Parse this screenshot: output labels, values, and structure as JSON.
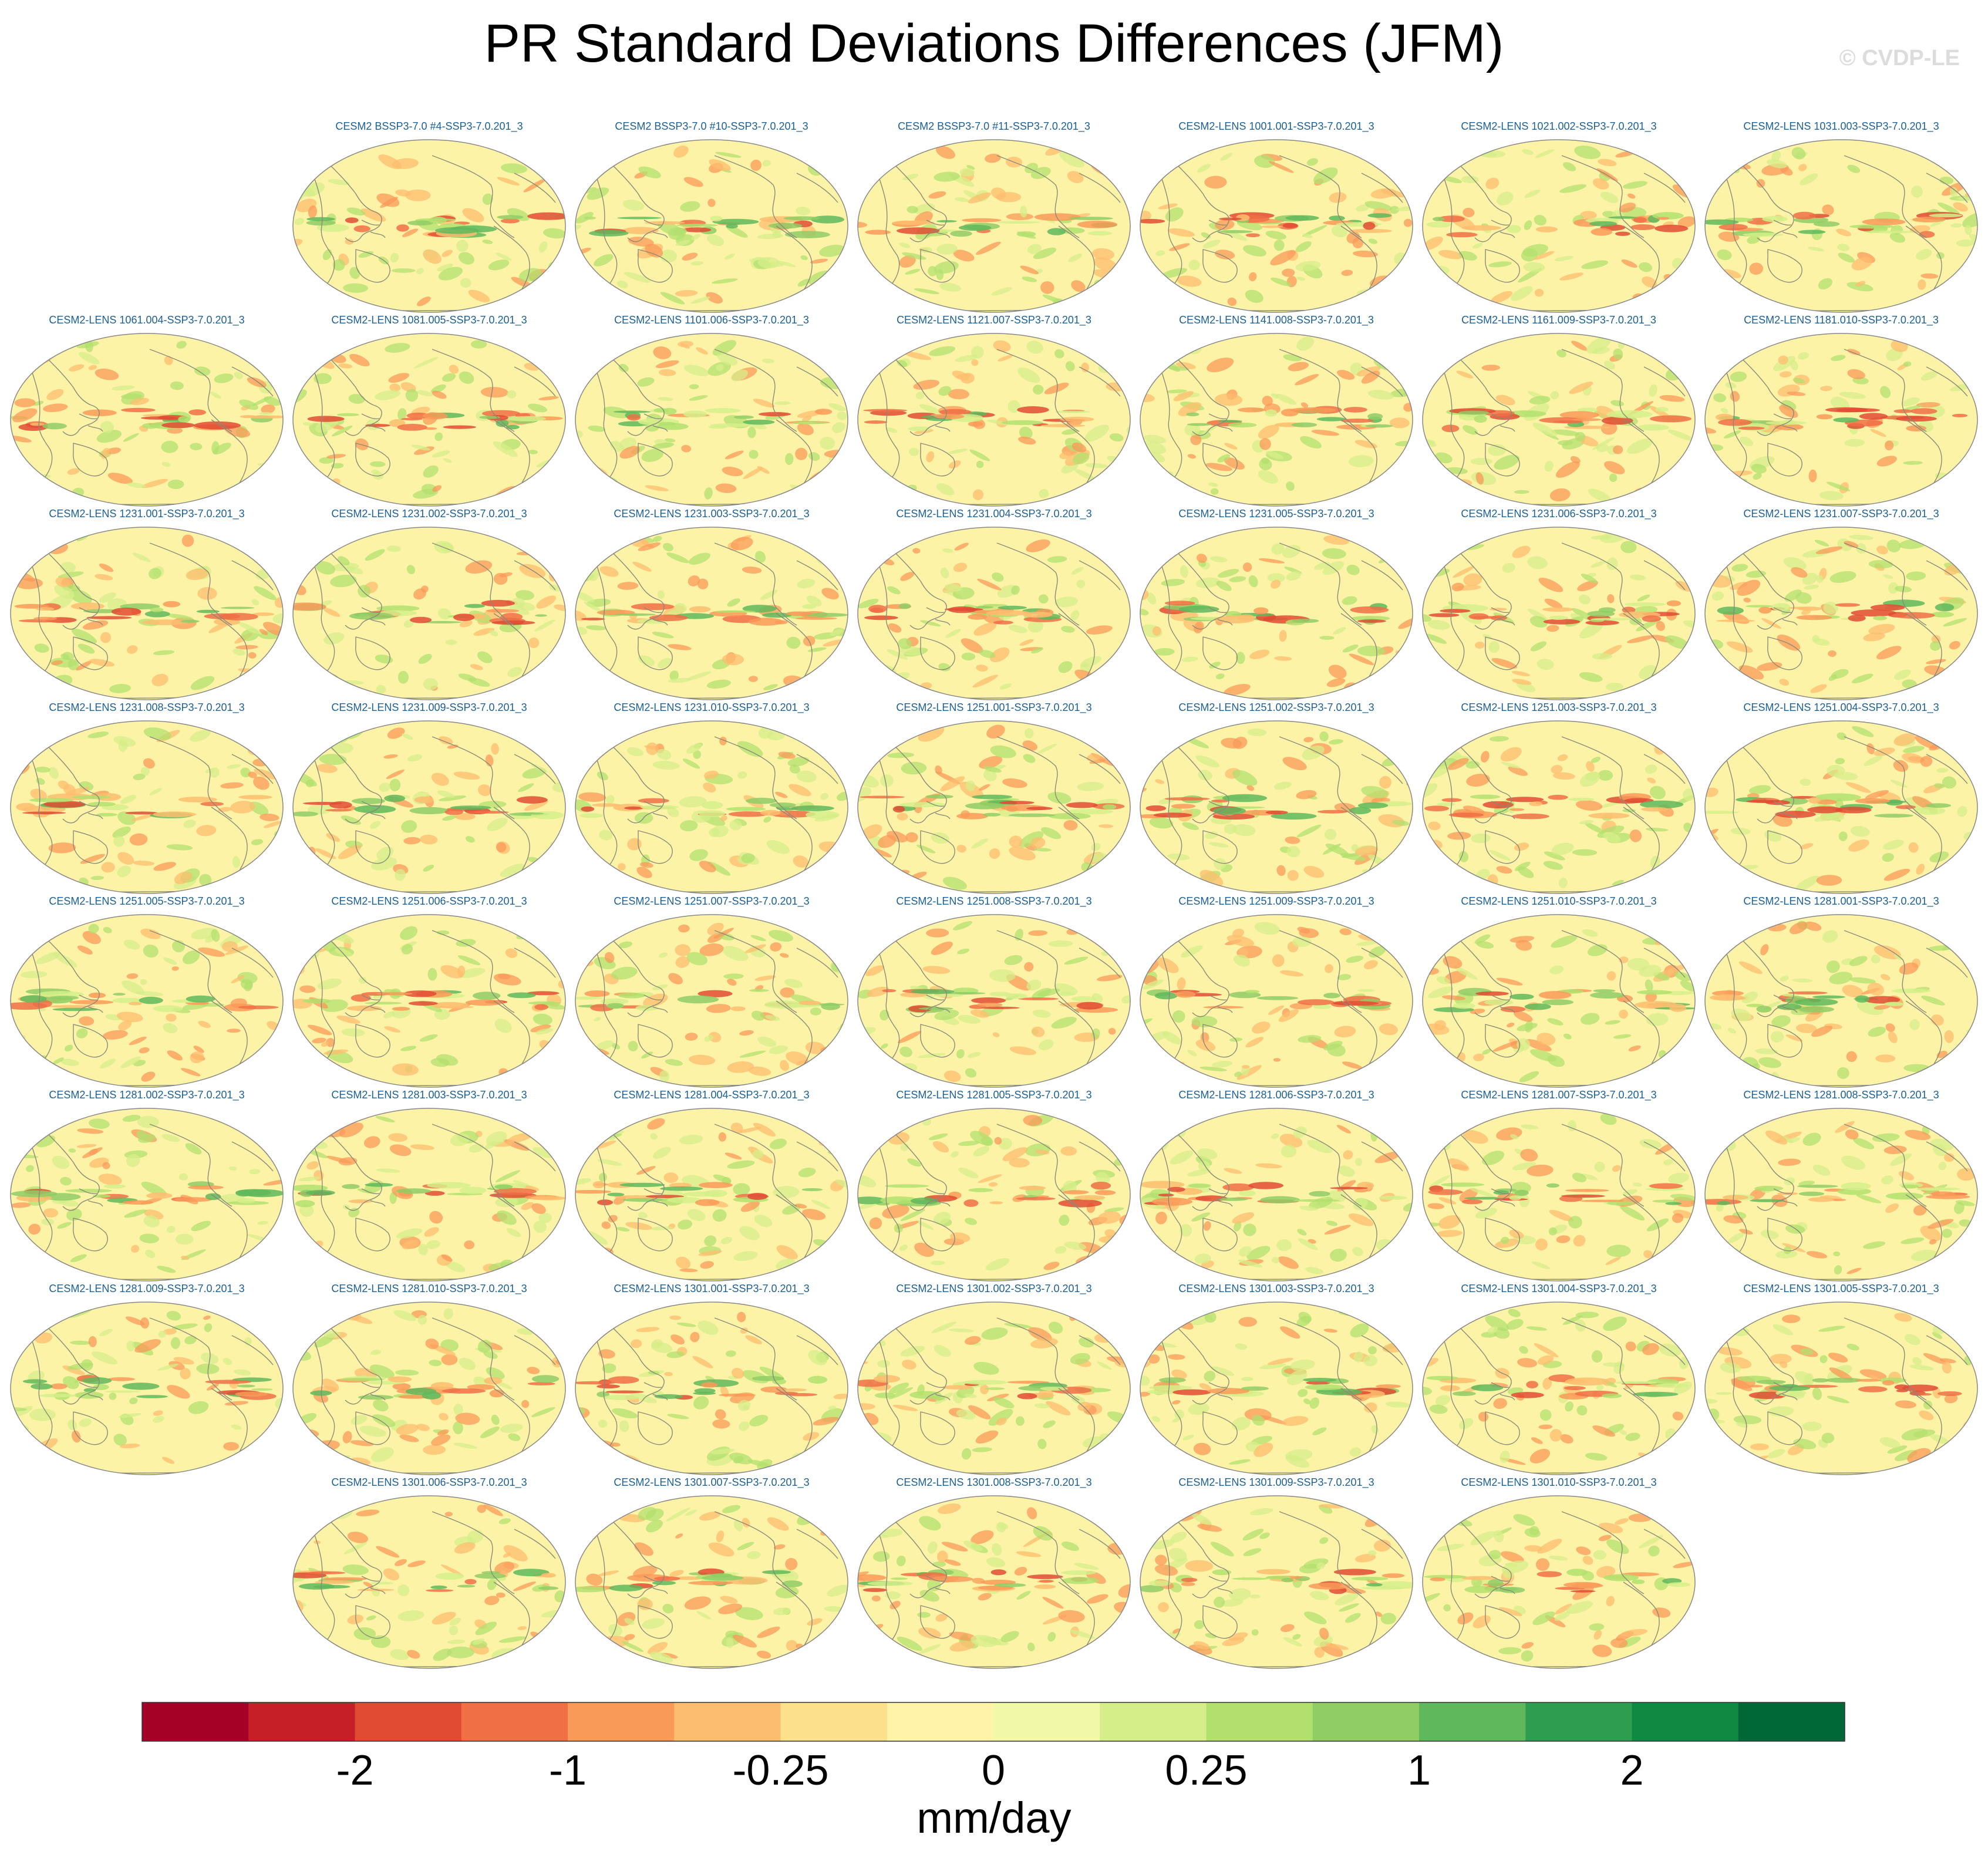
{
  "title": "PR Standard Deviations Differences (JFM)",
  "watermark": "© CVDP-LE",
  "panels": [
    [
      "",
      "CESM2 BSSP3-7.0 #4-SSP3-7.0.201_3",
      "CESM2 BSSP3-7.0 #10-SSP3-7.0.201_3",
      "CESM2 BSSP3-7.0 #11-SSP3-7.0.201_3",
      "CESM2-LENS 1001.001-SSP3-7.0.201_3",
      "CESM2-LENS 1021.002-SSP3-7.0.201_3",
      "CESM2-LENS 1031.003-SSP3-7.0.201_3"
    ],
    [
      "CESM2-LENS 1061.004-SSP3-7.0.201_3",
      "CESM2-LENS 1081.005-SSP3-7.0.201_3",
      "CESM2-LENS 1101.006-SSP3-7.0.201_3",
      "CESM2-LENS 1121.007-SSP3-7.0.201_3",
      "CESM2-LENS 1141.008-SSP3-7.0.201_3",
      "CESM2-LENS 1161.009-SSP3-7.0.201_3",
      "CESM2-LENS 1181.010-SSP3-7.0.201_3"
    ],
    [
      "CESM2-LENS 1231.001-SSP3-7.0.201_3",
      "CESM2-LENS 1231.002-SSP3-7.0.201_3",
      "CESM2-LENS 1231.003-SSP3-7.0.201_3",
      "CESM2-LENS 1231.004-SSP3-7.0.201_3",
      "CESM2-LENS 1231.005-SSP3-7.0.201_3",
      "CESM2-LENS 1231.006-SSP3-7.0.201_3",
      "CESM2-LENS 1231.007-SSP3-7.0.201_3"
    ],
    [
      "CESM2-LENS 1231.008-SSP3-7.0.201_3",
      "CESM2-LENS 1231.009-SSP3-7.0.201_3",
      "CESM2-LENS 1231.010-SSP3-7.0.201_3",
      "CESM2-LENS 1251.001-SSP3-7.0.201_3",
      "CESM2-LENS 1251.002-SSP3-7.0.201_3",
      "CESM2-LENS 1251.003-SSP3-7.0.201_3",
      "CESM2-LENS 1251.004-SSP3-7.0.201_3"
    ],
    [
      "CESM2-LENS 1251.005-SSP3-7.0.201_3",
      "CESM2-LENS 1251.006-SSP3-7.0.201_3",
      "CESM2-LENS 1251.007-SSP3-7.0.201_3",
      "CESM2-LENS 1251.008-SSP3-7.0.201_3",
      "CESM2-LENS 1251.009-SSP3-7.0.201_3",
      "CESM2-LENS 1251.010-SSP3-7.0.201_3",
      "CESM2-LENS 1281.001-SSP3-7.0.201_3"
    ],
    [
      "CESM2-LENS 1281.002-SSP3-7.0.201_3",
      "CESM2-LENS 1281.003-SSP3-7.0.201_3",
      "CESM2-LENS 1281.004-SSP3-7.0.201_3",
      "CESM2-LENS 1281.005-SSP3-7.0.201_3",
      "CESM2-LENS 1281.006-SSP3-7.0.201_3",
      "CESM2-LENS 1281.007-SSP3-7.0.201_3",
      "CESM2-LENS 1281.008-SSP3-7.0.201_3"
    ],
    [
      "CESM2-LENS 1281.009-SSP3-7.0.201_3",
      "CESM2-LENS 1281.010-SSP3-7.0.201_3",
      "CESM2-LENS 1301.001-SSP3-7.0.201_3",
      "CESM2-LENS 1301.002-SSP3-7.0.201_3",
      "CESM2-LENS 1301.003-SSP3-7.0.201_3",
      "CESM2-LENS 1301.004-SSP3-7.0.201_3",
      "CESM2-LENS 1301.005-SSP3-7.0.201_3"
    ],
    [
      "",
      "CESM2-LENS 1301.006-SSP3-7.0.201_3",
      "CESM2-LENS 1301.007-SSP3-7.0.201_3",
      "CESM2-LENS 1301.008-SSP3-7.0.201_3",
      "CESM2-LENS 1301.009-SSP3-7.0.201_3",
      "CESM2-LENS 1301.010-SSP3-7.0.201_3",
      ""
    ]
  ],
  "colorbar": {
    "colors": [
      "#a50026",
      "#c61f28",
      "#e04b33",
      "#f06f45",
      "#f99a58",
      "#fdbd6f",
      "#fde08b",
      "#fff3aa",
      "#f1f8a8",
      "#d5ee8a",
      "#b2e06f",
      "#8fcd65",
      "#5fb85c",
      "#2f9d4f",
      "#108a43",
      "#006837"
    ],
    "ticks": [
      {
        "label": "-2",
        "boundary": 2
      },
      {
        "label": "-1",
        "boundary": 4
      },
      {
        "label": "-0.25",
        "boundary": 6
      },
      {
        "label": "0",
        "boundary": 8
      },
      {
        "label": "0.25",
        "boundary": 10
      },
      {
        "label": "1",
        "boundary": 12
      },
      {
        "label": "2",
        "boundary": 14
      }
    ],
    "units": "mm/day"
  },
  "map_colors": {
    "ocean": "#fdf3a6",
    "coast": "#8a8a7a",
    "outline": "#888888"
  }
}
